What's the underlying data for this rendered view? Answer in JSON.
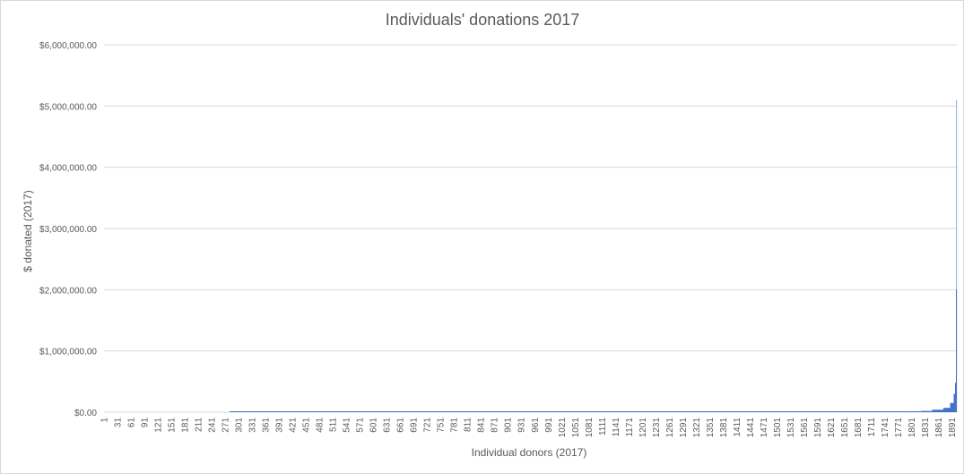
{
  "chart_data": {
    "type": "bar",
    "title": "Individuals' donations 2017",
    "xlabel": "Individual donors (2017)",
    "ylabel": "$ donated (2017)",
    "ylim": [
      0,
      6000000
    ],
    "y_ticks": [
      {
        "value": 0,
        "label": "$0.00"
      },
      {
        "value": 1000000,
        "label": "$1,000,000.00"
      },
      {
        "value": 2000000,
        "label": "$2,000,000.00"
      },
      {
        "value": 3000000,
        "label": "$3,000,000.00"
      },
      {
        "value": 4000000,
        "label": "$4,000,000.00"
      },
      {
        "value": 5000000,
        "label": "$5,000,000.00"
      },
      {
        "value": 6000000,
        "label": "$6,000,000.00"
      }
    ],
    "x_range": [
      1,
      1900
    ],
    "x_tick_start": 1,
    "x_tick_step": 30,
    "x_tick_labels": [
      "1",
      "31",
      "61",
      "91",
      "121",
      "151",
      "181",
      "211",
      "241",
      "271",
      "301",
      "331",
      "361",
      "391",
      "421",
      "451",
      "481",
      "511",
      "541",
      "571",
      "601",
      "631",
      "661",
      "691",
      "721",
      "751",
      "781",
      "811",
      "841",
      "871",
      "901",
      "931",
      "961",
      "991",
      "1021",
      "1051",
      "1081",
      "1111",
      "1141",
      "1171",
      "1201",
      "1231",
      "1261",
      "1291",
      "1321",
      "1351",
      "1381",
      "1411",
      "1441",
      "1471",
      "1501",
      "1531",
      "1561",
      "1591",
      "1621",
      "1651",
      "1681",
      "1711",
      "1741",
      "1771",
      "1801",
      "1831",
      "1861",
      "1891"
    ],
    "grid": true,
    "legend": "none",
    "bar_color": "#4472c4",
    "series": [
      {
        "values_approx": [
          {
            "from": 1,
            "to": 280,
            "value": 0
          },
          {
            "from": 281,
            "to": 1790,
            "value": 2000
          },
          {
            "from": 1791,
            "to": 1820,
            "value": 10000
          },
          {
            "from": 1821,
            "to": 1845,
            "value": 20000
          },
          {
            "from": 1846,
            "to": 1870,
            "value": 40000
          },
          {
            "from": 1871,
            "to": 1885,
            "value": 70000
          },
          {
            "from": 1886,
            "to": 1893,
            "value": 150000
          },
          {
            "from": 1894,
            "to": 1896,
            "value": 300000
          },
          {
            "from": 1897,
            "to": 1898,
            "value": 480000
          },
          {
            "from": 1899,
            "to": 1899,
            "value": 2000000
          },
          {
            "from": 1900,
            "to": 1900,
            "value": 5100000
          }
        ]
      }
    ]
  }
}
